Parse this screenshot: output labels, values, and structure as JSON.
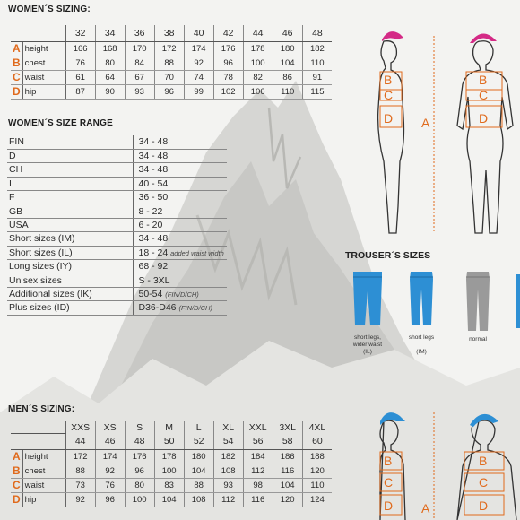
{
  "womens_sizing": {
    "title": "WOMEN´S SIZING:",
    "sizes": [
      "32",
      "34",
      "36",
      "38",
      "40",
      "42",
      "44",
      "46",
      "48"
    ],
    "rows": [
      {
        "letter": "A",
        "measure": "height",
        "values": [
          "166",
          "168",
          "170",
          "172",
          "174",
          "176",
          "178",
          "180",
          "182"
        ]
      },
      {
        "letter": "B",
        "measure": "chest",
        "values": [
          "76",
          "80",
          "84",
          "88",
          "92",
          "96",
          "100",
          "104",
          "110"
        ]
      },
      {
        "letter": "C",
        "measure": "waist",
        "values": [
          "61",
          "64",
          "67",
          "70",
          "74",
          "78",
          "82",
          "86",
          "91"
        ]
      },
      {
        "letter": "D",
        "measure": "hip",
        "values": [
          "87",
          "90",
          "93",
          "96",
          "99",
          "102",
          "106",
          "110",
          "115"
        ]
      }
    ]
  },
  "womens_size_range": {
    "title": "WOMEN´S  SIZE RANGE",
    "rows": [
      {
        "country": "FIN",
        "sizes": "34 - 48",
        "note": ""
      },
      {
        "country": "D",
        "sizes": "34 - 48",
        "note": ""
      },
      {
        "country": "CH",
        "sizes": "34 - 48",
        "note": ""
      },
      {
        "country": "I",
        "sizes": "40 - 54",
        "note": ""
      },
      {
        "country": "F",
        "sizes": "36 - 50",
        "note": ""
      },
      {
        "country": "GB",
        "sizes": "8 - 22",
        "note": ""
      },
      {
        "country": "USA",
        "sizes": "6 - 20",
        "note": ""
      },
      {
        "country": "Short sizes (IM)",
        "sizes": "34 - 48",
        "note": ""
      },
      {
        "country": "Short sizes (IL)",
        "sizes": "18 - 24",
        "note": "added waist width"
      },
      {
        "country": "Long sizes (IY)",
        "sizes": "68 - 92",
        "note": ""
      },
      {
        "country": "Unisex sizes",
        "sizes": "S - 3XL",
        "note": ""
      },
      {
        "country": "Additional sizes (IK)",
        "sizes": "50-54",
        "note": "(FIN/D/CH)"
      },
      {
        "country": "Plus sizes (ID)",
        "sizes": "D36-D46",
        "note": "(FIN/D/CH)"
      }
    ]
  },
  "trousers": {
    "title": "TROUSER´S SIZES",
    "items": [
      {
        "label_line1": "short legs,",
        "label_line2": "wider waist",
        "label_line3": "(IL)",
        "color": "#2d8fd4"
      },
      {
        "label_line1": "short legs",
        "label_line2": "",
        "label_line3": "(IM)",
        "color": "#2d8fd4"
      },
      {
        "label_line1": "normal",
        "label_line2": "",
        "label_line3": "",
        "color": "#9a9a9a"
      }
    ]
  },
  "mens_sizing": {
    "title": "MEN´S SIZING:",
    "size_letters": [
      "XXS",
      "XS",
      "S",
      "M",
      "L",
      "XL",
      "XXL",
      "3XL",
      "4XL"
    ],
    "sizes": [
      "44",
      "46",
      "48",
      "50",
      "52",
      "54",
      "56",
      "58",
      "60"
    ],
    "rows": [
      {
        "letter": "A",
        "measure": "height",
        "values": [
          "172",
          "174",
          "176",
          "178",
          "180",
          "182",
          "184",
          "186",
          "188"
        ]
      },
      {
        "letter": "B",
        "measure": "chest",
        "values": [
          "88",
          "92",
          "96",
          "100",
          "104",
          "108",
          "112",
          "116",
          "120"
        ]
      },
      {
        "letter": "C",
        "measure": "waist",
        "values": [
          "73",
          "76",
          "80",
          "83",
          "88",
          "93",
          "98",
          "104",
          "110"
        ]
      },
      {
        "letter": "D",
        "measure": "hip",
        "values": [
          "92",
          "96",
          "100",
          "104",
          "108",
          "112",
          "116",
          "120",
          "124"
        ]
      }
    ]
  },
  "figures": {
    "women_letters": [
      "A",
      "B",
      "C",
      "D"
    ],
    "men_letters": [
      "A",
      "B",
      "C",
      "D"
    ],
    "women_cap_color": "#d42a86",
    "men_cap_color": "#2d8fd4",
    "accent_color": "#e06a1c"
  }
}
